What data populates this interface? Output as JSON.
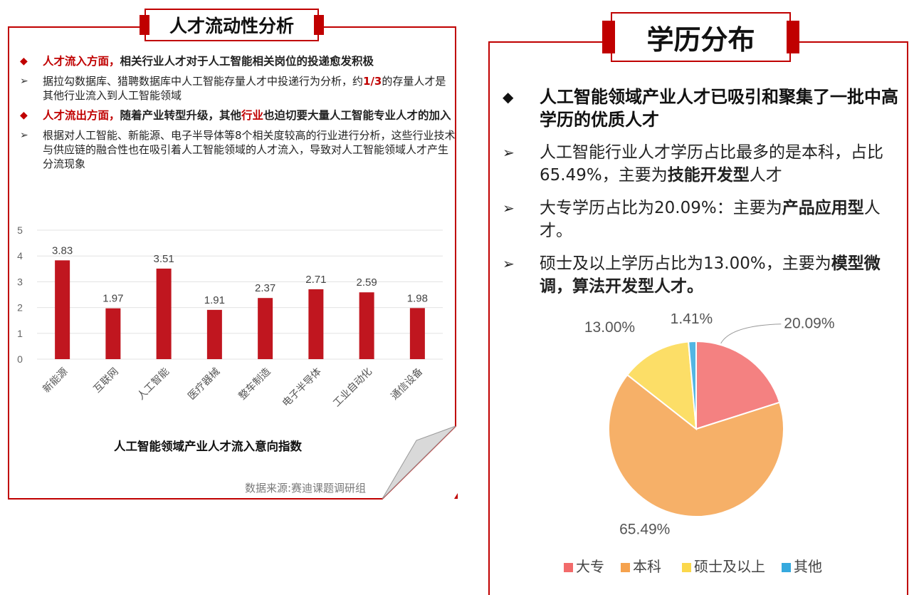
{
  "left": {
    "title": "人才流动性分析",
    "bullets": [
      {
        "type": "diamond",
        "bold": true,
        "parts": [
          {
            "text": "人才流入方面，",
            "red": true
          },
          {
            "text": "相关行业人才对于人工智能相关岗位的投递愈发积极",
            "red": false
          }
        ]
      },
      {
        "type": "arrow",
        "bold": false,
        "parts": [
          {
            "text": "据拉勾数据库、猎聘数据库中人工智能存量人才中投递行为分析，约",
            "red": false
          },
          {
            "text": "1/3",
            "red": true,
            "strong": true
          },
          {
            "text": "的存量人才是其他行业流入到人工智能领域",
            "red": false
          }
        ]
      },
      {
        "type": "diamond",
        "bold": true,
        "parts": [
          {
            "text": "人才流出方面，",
            "red": true
          },
          {
            "text": "随着产业转型升级，其他",
            "red": false
          },
          {
            "text": "行业",
            "red": true
          },
          {
            "text": "也迫切要大量人工智能专业人才的加入",
            "red": false
          }
        ]
      },
      {
        "type": "arrow",
        "bold": false,
        "parts": [
          {
            "text": "根据对人工智能、新能源、电子半导体等8个相关度较高的行业进行分析，这些行业技术与供应链的融合性也在吸引着人工智能领域的人才流入，导致对人工智能领域人才产生分流现象",
            "red": false
          }
        ]
      }
    ],
    "chart_caption": "人工智能领域产业人才流入意向指数",
    "source": "数据来源:赛迪课题调研组"
  },
  "right": {
    "title": "学历分布",
    "bullets": [
      {
        "type": "diamond",
        "head": true,
        "parts": [
          {
            "text": "人工智能领域产业人才已吸引和聚集了一批中高学历的优质人才",
            "b": true
          }
        ]
      },
      {
        "type": "arrow",
        "head": false,
        "parts": [
          {
            "text": "人工智能行业人才学历占比最多的是本科，占比65.49%，主要为",
            "b": false
          },
          {
            "text": "技能开发型",
            "b": true
          },
          {
            "text": "人才",
            "b": false
          }
        ]
      },
      {
        "type": "arrow",
        "head": false,
        "parts": [
          {
            "text": "大专学历占比为20.09%：主要为",
            "b": false
          },
          {
            "text": "产品应用型",
            "b": true
          },
          {
            "text": "人才。",
            "b": false
          }
        ]
      },
      {
        "type": "arrow",
        "head": false,
        "parts": [
          {
            "text": "硕士及以上学历占比为13.00%，主要为",
            "b": false
          },
          {
            "text": "模型微调，算法开发型人才。",
            "b": true
          }
        ]
      }
    ]
  },
  "colors": {
    "accent": "#c00000",
    "bar": "#c0161f"
  },
  "chart_data": [
    {
      "type": "bar",
      "categories": [
        "新能源",
        "互联网",
        "人工智能",
        "医疗器械",
        "整车制造",
        "电子半导体",
        "工业自动化",
        "通信设备"
      ],
      "values": [
        3.83,
        1.97,
        3.51,
        1.91,
        2.37,
        2.71,
        2.59,
        1.98
      ],
      "data_labels": [
        "3.83",
        "1.97",
        "3.51",
        "1.91",
        "2.37",
        "2.71",
        "2.59",
        "1.98"
      ],
      "yticks": [
        "0",
        "1",
        "2",
        "3",
        "4",
        "5"
      ],
      "ylim": [
        0,
        5
      ],
      "title": "人工智能领域产业人才流入意向指数",
      "grid": true
    },
    {
      "type": "pie",
      "labels": [
        "大专",
        "本科",
        "硕士及以上",
        "其他"
      ],
      "values": [
        20.09,
        65.49,
        13.0,
        1.41
      ],
      "data_labels": [
        "20.09%",
        "65.49%",
        "13.00%",
        "1.41%"
      ],
      "colors": [
        "#f26b6b",
        "#f5a24e",
        "#fbd84c",
        "#35a9de"
      ],
      "legend_position": "bottom"
    }
  ]
}
